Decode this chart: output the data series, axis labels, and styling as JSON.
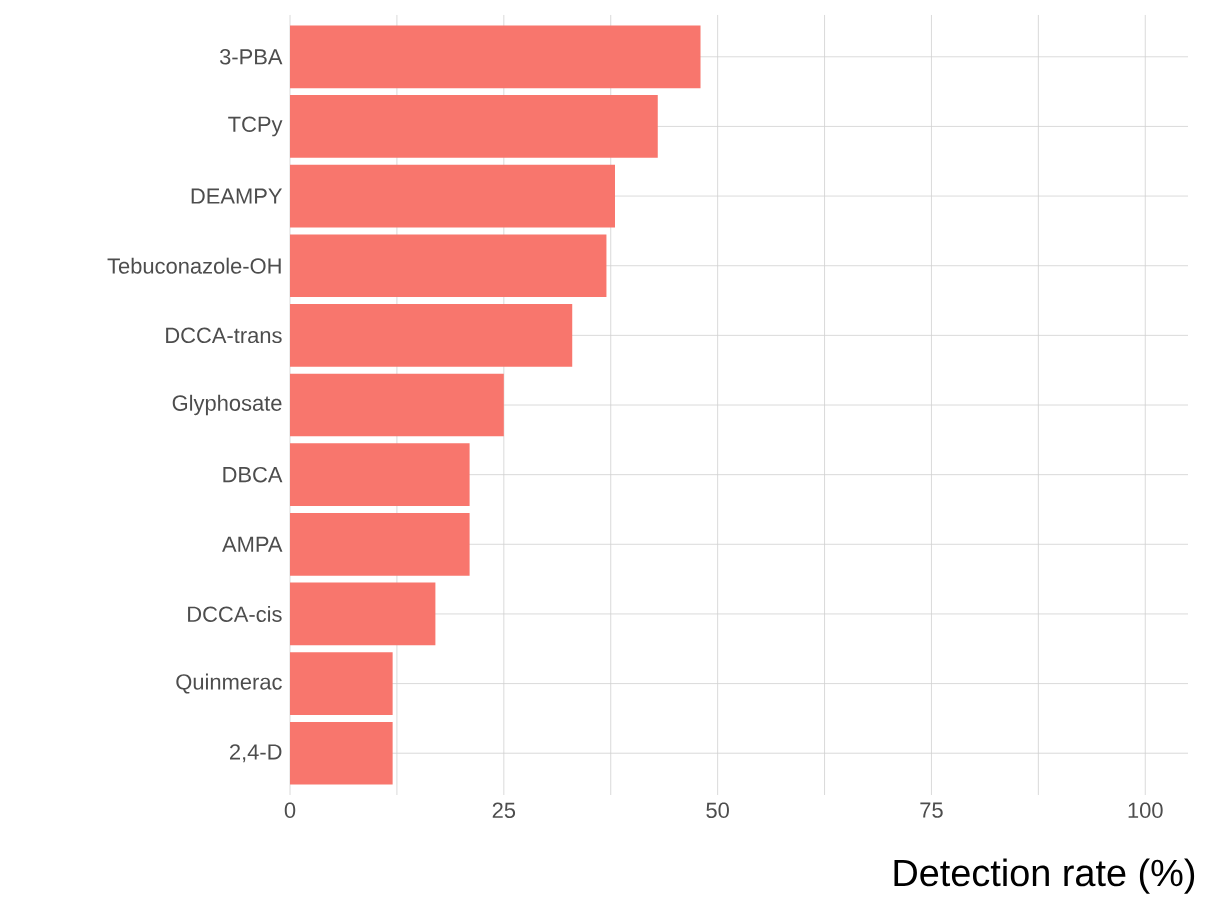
{
  "chart_data": {
    "type": "bar",
    "orientation": "horizontal",
    "xlabel": "Detection rate (%)",
    "categories": [
      "3-PBA",
      "TCPy",
      "DEAMPY",
      "Tebuconazole-OH",
      "DCCA-trans",
      "Glyphosate",
      "DBCA",
      "AMPA",
      "DCCA-cis",
      "Quinmerac",
      "2,4-D"
    ],
    "values": [
      48,
      43,
      38,
      37,
      33,
      25,
      21,
      21,
      17,
      12,
      12
    ],
    "color": "#f8766d",
    "xlim": [
      0,
      105
    ],
    "xticks": [
      0,
      {
        "value": 12.5,
        "label": null
      },
      25,
      {
        "value": 37.5,
        "label": null
      },
      50,
      {
        "value": 62.5,
        "label": null
      },
      75,
      {
        "value": 87.5,
        "label": null
      },
      100
    ],
    "grid": true
  }
}
